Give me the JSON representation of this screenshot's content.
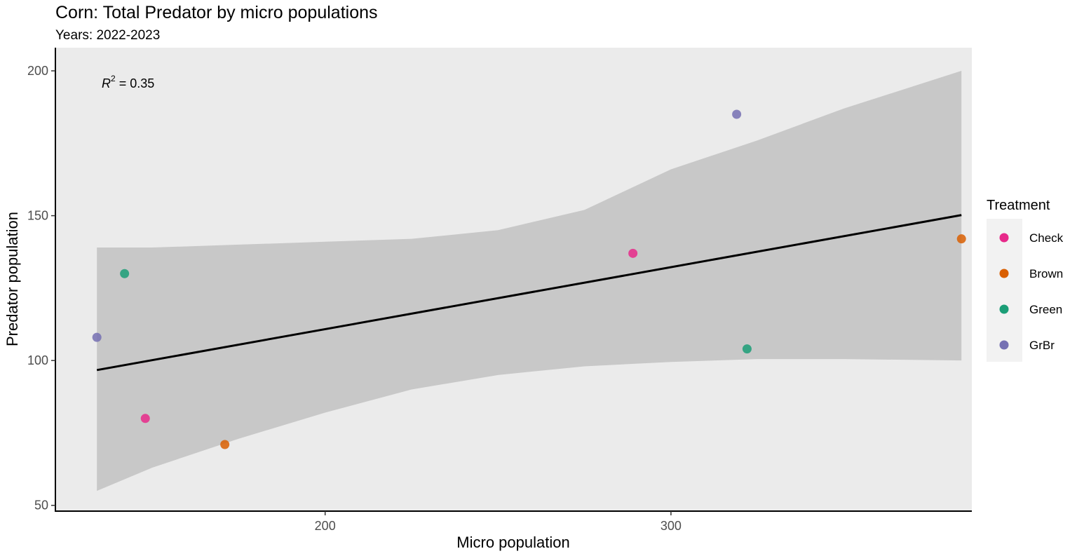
{
  "chart_data": {
    "type": "scatter",
    "title": "Corn: Total Predator by micro populations",
    "subtitle": "Years: 2022-2023",
    "xlabel": "Micro population",
    "ylabel": "Predator population",
    "xlim": [
      122,
      387
    ],
    "ylim": [
      48,
      208
    ],
    "xticks": [
      200,
      300
    ],
    "yticks": [
      50,
      100,
      150,
      200
    ],
    "grid": false,
    "legend": {
      "title": "Treatment",
      "placement": "right",
      "entries": [
        "Check",
        "Brown",
        "Green",
        "GrBr"
      ]
    },
    "colors": {
      "Check": "#e7298a",
      "Brown": "#d95f02",
      "Green": "#1b9e77",
      "GrBr": "#7570b3",
      "panel": "#ebebeb",
      "ribbon": "#c8c8c8",
      "line": "#000000"
    },
    "series": [
      {
        "name": "Check",
        "points": [
          [
            148,
            80
          ],
          [
            289,
            137
          ]
        ]
      },
      {
        "name": "Brown",
        "points": [
          [
            171,
            71
          ],
          [
            384,
            142
          ]
        ]
      },
      {
        "name": "Green",
        "points": [
          [
            142,
            130
          ],
          [
            322,
            104
          ]
        ]
      },
      {
        "name": "GrBr",
        "points": [
          [
            134,
            108
          ],
          [
            319,
            185
          ]
        ]
      }
    ],
    "fit": {
      "type": "linear",
      "x_range": [
        134,
        384
      ],
      "y_at_xmin": 96.7,
      "y_at_xmax": 150.2,
      "ribbon": [
        [
          134,
          55,
          139
        ],
        [
          150,
          63,
          139
        ],
        [
          175,
          73,
          140
        ],
        [
          200,
          82,
          141
        ],
        [
          225,
          90,
          142
        ],
        [
          250,
          95,
          145
        ],
        [
          275,
          98,
          152
        ],
        [
          300,
          99.5,
          166
        ],
        [
          325,
          100.5,
          176
        ],
        [
          350,
          100.5,
          187
        ],
        [
          384,
          100,
          200
        ]
      ]
    },
    "annotation": {
      "label": "R",
      "superscript": "2",
      "value": " = 0.35"
    }
  }
}
